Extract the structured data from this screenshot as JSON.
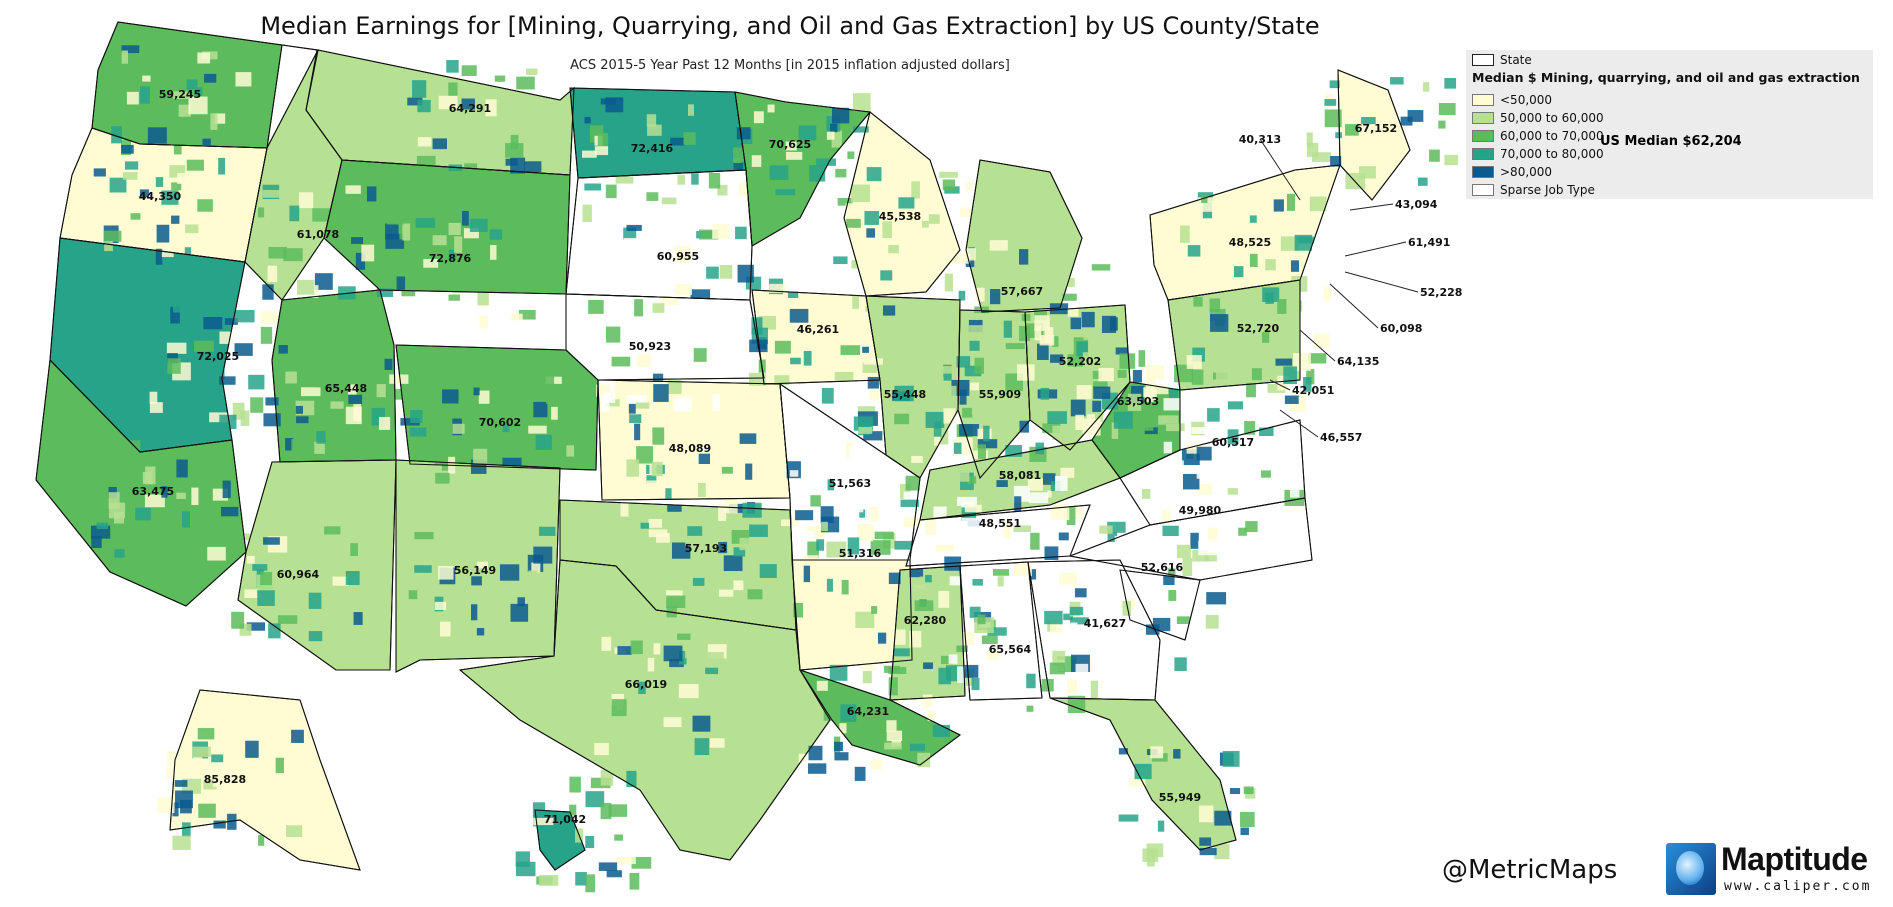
{
  "title": "Median Earnings for [Mining, Quarrying, and Oil and Gas Extraction] by US County/State",
  "subtitle": "ACS 2015-5 Year Past 12 Months [in 2015 inflation adjusted dollars]",
  "legend": {
    "state_label": "State",
    "heading": "Median $ Mining, quarrying, and oil and gas extraction",
    "classes": [
      {
        "label": "<50,000",
        "color": "#fffcd4"
      },
      {
        "label": "50,000 to 60,000",
        "color": "#b7e192"
      },
      {
        "label": "60,000 to 70,000",
        "color": "#5cbc5c"
      },
      {
        "label": "70,000 to 80,000",
        "color": "#27a38a"
      },
      {
        "label": ">80,000",
        "color": "#0b5a8e"
      },
      {
        "label": "Sparse Job Type",
        "color": "#ffffff"
      }
    ],
    "us_median_note": "US Median $62,204"
  },
  "credit_handle": "@MetricMaps",
  "logo": {
    "name": "Maptitude",
    "url": "www.caliper.com"
  },
  "states": [
    {
      "value": "59,245",
      "fill": "#5cbc5c"
    },
    {
      "value": "64,291",
      "fill": "#b7e192"
    },
    {
      "value": "72,416",
      "fill": "#27a38a"
    },
    {
      "value": "70,625",
      "fill": "#5cbc5c"
    },
    {
      "value": "44,350",
      "fill": "#fffcd4"
    },
    {
      "value": "61,078",
      "fill": "#b7e192"
    },
    {
      "value": "60,955",
      "fill": "#ffffff"
    },
    {
      "value": "45,538",
      "fill": "#fffcd4"
    },
    {
      "value": "72,876",
      "fill": "#5cbc5c"
    },
    {
      "value": "57,667",
      "fill": "#b7e192"
    },
    {
      "value": "48,525",
      "fill": "#fffcd4"
    },
    {
      "value": "67,152",
      "fill": "#fffcd4"
    },
    {
      "value": "72,025",
      "fill": "#27a38a"
    },
    {
      "value": "65,448",
      "fill": "#5cbc5c"
    },
    {
      "value": "50,923",
      "fill": "#ffffff"
    },
    {
      "value": "46,261",
      "fill": "#fffcd4"
    },
    {
      "value": "52,720",
      "fill": "#b7e192"
    },
    {
      "value": "70,602",
      "fill": "#5cbc5c"
    },
    {
      "value": "55,448",
      "fill": "#b7e192"
    },
    {
      "value": "55,909",
      "fill": "#b7e192"
    },
    {
      "value": "52,202",
      "fill": "#b7e192"
    },
    {
      "value": "63,503",
      "fill": "#5cbc5c"
    },
    {
      "value": "63,475",
      "fill": "#5cbc5c"
    },
    {
      "value": "48,089",
      "fill": "#fffcd4"
    },
    {
      "value": "51,563",
      "fill": "#ffffff"
    },
    {
      "value": "58,081",
      "fill": "#b7e192"
    },
    {
      "value": "60,517",
      "fill": "#ffffff"
    },
    {
      "value": "60,964",
      "fill": "#b7e192"
    },
    {
      "value": "56,149",
      "fill": "#b7e192"
    },
    {
      "value": "57,193",
      "fill": "#b7e192"
    },
    {
      "value": "51,316",
      "fill": "#fffcd4"
    },
    {
      "value": "48,551",
      "fill": "#ffffff"
    },
    {
      "value": "49,980",
      "fill": "#ffffff"
    },
    {
      "value": "52,616",
      "fill": "#ffffff"
    },
    {
      "value": "62,280",
      "fill": "#b7e192"
    },
    {
      "value": "65,564",
      "fill": "#ffffff"
    },
    {
      "value": "41,627",
      "fill": "#ffffff"
    },
    {
      "value": "66,019",
      "fill": "#b7e192"
    },
    {
      "value": "64,231",
      "fill": "#5cbc5c"
    },
    {
      "value": "55,949",
      "fill": "#b7e192"
    },
    {
      "value": "85,828",
      "fill": "#fffcd4"
    },
    {
      "value": "71,042",
      "fill": "#27a38a"
    }
  ],
  "callouts": [
    {
      "value": "40,313"
    },
    {
      "value": "43,094"
    },
    {
      "value": "61,491"
    },
    {
      "value": "52,228"
    },
    {
      "value": "60,098"
    },
    {
      "value": "64,135"
    },
    {
      "value": "42,051"
    },
    {
      "value": "46,557"
    }
  ]
}
